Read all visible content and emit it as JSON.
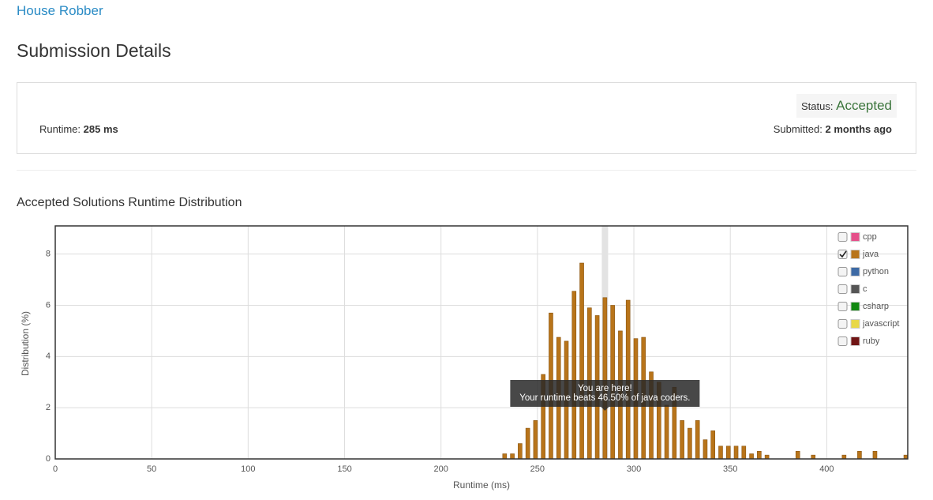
{
  "header": {
    "problem": "House Robber",
    "heading": "Submission Details"
  },
  "summary": {
    "runtime_label": "Runtime:",
    "runtime": "285 ms",
    "status_label": "Status:",
    "status": "Accepted",
    "submitted_label": "Submitted:",
    "submitted": "2 months ago"
  },
  "chart_data": {
    "type": "bar",
    "title": "Accepted Solutions Runtime Distribution",
    "x_label": "Runtime (ms)",
    "y_label": "Distribution (%)",
    "xlim": [
      0,
      442
    ],
    "ylim": [
      0,
      9.1
    ],
    "xticks": [
      0,
      50,
      100,
      150,
      200,
      250,
      300,
      350,
      400
    ],
    "yticks": [
      0,
      2,
      4,
      6,
      8
    ],
    "grid": true,
    "highlight_x": 285,
    "tooltip": [
      "You are here!",
      "Your runtime beats 46.50% of java coders."
    ],
    "x": [
      233,
      237,
      241,
      245,
      249,
      253,
      257,
      261,
      265,
      269,
      273,
      277,
      281,
      285,
      289,
      293,
      297,
      301,
      305,
      309,
      313,
      317,
      321,
      325,
      329,
      333,
      337,
      341,
      345,
      349,
      353,
      357,
      361,
      365,
      369,
      385,
      393,
      409,
      417,
      425,
      441
    ],
    "series": [
      {
        "name": "java",
        "color": "#b8741a",
        "values": [
          0.2,
          0.2,
          0.6,
          1.2,
          1.5,
          3.3,
          5.7,
          4.75,
          4.6,
          6.55,
          7.65,
          5.9,
          5.6,
          6.3,
          6.0,
          5.0,
          6.2,
          4.7,
          4.75,
          3.4,
          3.0,
          2.1,
          2.8,
          1.5,
          1.2,
          1.5,
          0.75,
          1.1,
          0.5,
          0.5,
          0.5,
          0.5,
          0.2,
          0.3,
          0.15,
          0.3,
          0.15,
          0.15,
          0.3,
          0.3,
          0.15
        ]
      }
    ],
    "legend": [
      {
        "name": "cpp",
        "color": "#e5508a",
        "checked": false
      },
      {
        "name": "java",
        "color": "#b8741a",
        "checked": true
      },
      {
        "name": "python",
        "color": "#3d6aa5",
        "checked": false
      },
      {
        "name": "c",
        "color": "#555555",
        "checked": false
      },
      {
        "name": "csharp",
        "color": "#118811",
        "checked": false
      },
      {
        "name": "javascript",
        "color": "#e8d848",
        "checked": false
      },
      {
        "name": "ruby",
        "color": "#701515",
        "checked": false
      }
    ]
  }
}
